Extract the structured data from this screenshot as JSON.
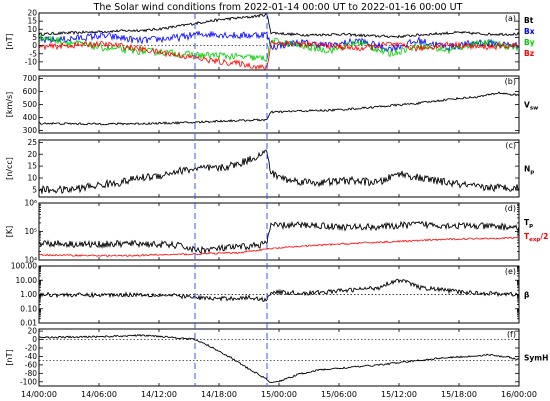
{
  "title": "The Solar wind conditions from 2022-01-14 00:00 UT to 2022-01-16 00:00 UT",
  "x_axis": {
    "range_hours": [
      0,
      48
    ],
    "ticks": [
      {
        "h": 0,
        "label": "14/00:00"
      },
      {
        "h": 6,
        "label": "14/06:00"
      },
      {
        "h": 12,
        "label": "14/12:00"
      },
      {
        "h": 18,
        "label": "14/18:00"
      },
      {
        "h": 24,
        "label": "15/00:00"
      },
      {
        "h": 30,
        "label": "15/06:00"
      },
      {
        "h": 36,
        "label": "15/12:00"
      },
      {
        "h": 42,
        "label": "15/18:00"
      },
      {
        "h": 48,
        "label": "16/00:00"
      }
    ]
  },
  "event_lines_hours": [
    15.6,
    22.8
  ],
  "colors": {
    "black": "#000000",
    "blue": "#0000ff",
    "green": "#00cc00",
    "red": "#ff0000",
    "event_dashes": "#3355ff"
  },
  "chart_data": [
    {
      "type": "line",
      "panel": "a",
      "ylabel": "[nT]",
      "ylim": [
        -15,
        20
      ],
      "yticks": [
        -10,
        -5,
        0,
        5,
        10,
        15,
        20
      ],
      "ytick_labels": [
        "-10",
        "-5",
        "0",
        "5",
        "10",
        "15",
        "20"
      ],
      "ref_lines": [
        0
      ],
      "series": [
        {
          "name": "Bt",
          "color": "#000000",
          "points": [
            [
              0,
              7
            ],
            [
              4,
              8
            ],
            [
              8,
              9
            ],
            [
              11,
              9.5
            ],
            [
              13,
              11
            ],
            [
              15,
              13
            ],
            [
              17,
              15
            ],
            [
              19,
              16.5
            ],
            [
              21,
              17.5
            ],
            [
              22.8,
              19
            ],
            [
              23.2,
              8
            ],
            [
              25,
              7
            ],
            [
              27,
              6.5
            ],
            [
              30,
              7
            ],
            [
              33,
              6
            ],
            [
              36,
              5.5
            ],
            [
              39,
              7
            ],
            [
              42,
              8
            ],
            [
              45,
              7
            ],
            [
              48,
              7
            ]
          ],
          "noise": 0.8
        },
        {
          "name": "Bx",
          "color": "#0000ff",
          "points": [
            [
              0,
              3
            ],
            [
              3,
              4
            ],
            [
              6,
              6
            ],
            [
              8,
              5
            ],
            [
              10,
              3
            ],
            [
              12,
              4
            ],
            [
              14,
              5
            ],
            [
              16,
              7
            ],
            [
              18,
              7
            ],
            [
              20,
              6
            ],
            [
              22.8,
              7
            ],
            [
              23.2,
              -1
            ],
            [
              26,
              2
            ],
            [
              29,
              0
            ],
            [
              32,
              3
            ],
            [
              35,
              -2
            ],
            [
              38,
              3
            ],
            [
              41,
              -1
            ],
            [
              44,
              2
            ],
            [
              48,
              0
            ]
          ],
          "noise": 2.2
        },
        {
          "name": "By",
          "color": "#00cc00",
          "points": [
            [
              0,
              5
            ],
            [
              3,
              2
            ],
            [
              6,
              -1
            ],
            [
              9,
              -3
            ],
            [
              12,
              -4
            ],
            [
              14,
              -5
            ],
            [
              16,
              -6
            ],
            [
              18,
              -6
            ],
            [
              20,
              -7
            ],
            [
              22.8,
              -8
            ],
            [
              23.2,
              3
            ],
            [
              26,
              0
            ],
            [
              29,
              -3
            ],
            [
              32,
              2
            ],
            [
              35,
              -5
            ],
            [
              38,
              0
            ],
            [
              41,
              -3
            ],
            [
              44,
              2
            ],
            [
              48,
              -1
            ]
          ],
          "noise": 2.2
        },
        {
          "name": "Bz",
          "color": "#ff0000",
          "points": [
            [
              0,
              -1
            ],
            [
              3,
              0
            ],
            [
              6,
              1
            ],
            [
              8,
              0
            ],
            [
              10,
              -2
            ],
            [
              12,
              -4
            ],
            [
              14,
              -6
            ],
            [
              16,
              -8
            ],
            [
              18,
              -10
            ],
            [
              20,
              -11
            ],
            [
              22.8,
              -14
            ],
            [
              23.2,
              2
            ],
            [
              26,
              1
            ],
            [
              29,
              0
            ],
            [
              32,
              -2
            ],
            [
              35,
              1
            ],
            [
              38,
              -2
            ],
            [
              41,
              1
            ],
            [
              44,
              -1
            ],
            [
              48,
              0
            ]
          ],
          "noise": 1.8
        }
      ]
    },
    {
      "type": "line",
      "panel": "b",
      "ylabel": "[km/s]",
      "ylim": [
        280,
        720
      ],
      "yticks": [
        300,
        400,
        500,
        600,
        700
      ],
      "ytick_labels": [
        "300",
        "400",
        "500",
        "600",
        "700"
      ],
      "ref_lines": [],
      "series": [
        {
          "name": "Vsw",
          "color": "#000000",
          "points": [
            [
              0,
              355
            ],
            [
              5,
              350
            ],
            [
              10,
              352
            ],
            [
              15,
              360
            ],
            [
              18,
              372
            ],
            [
              22.8,
              382
            ],
            [
              23.2,
              440
            ],
            [
              26,
              450
            ],
            [
              29,
              455
            ],
            [
              32,
              470
            ],
            [
              35,
              490
            ],
            [
              38,
              510
            ],
            [
              41,
              540
            ],
            [
              44,
              560
            ],
            [
              46,
              590
            ],
            [
              48,
              570
            ]
          ],
          "noise": 8
        }
      ]
    },
    {
      "type": "line",
      "panel": "c",
      "ylabel": "[n/cc]",
      "ylim": [
        2,
        26
      ],
      "yticks": [
        5,
        10,
        15,
        20,
        25
      ],
      "ytick_labels": [
        "5",
        "10",
        "15",
        "20",
        "25"
      ],
      "ref_lines": [],
      "series": [
        {
          "name": "Np",
          "color": "#000000",
          "points": [
            [
              0,
              5
            ],
            [
              3,
              5
            ],
            [
              6,
              7
            ],
            [
              8,
              8
            ],
            [
              10,
              10
            ],
            [
              12,
              11
            ],
            [
              14,
              13
            ],
            [
              16,
              14
            ],
            [
              18,
              14
            ],
            [
              20,
              16
            ],
            [
              22.8,
              21
            ],
            [
              23.2,
              12
            ],
            [
              25,
              9
            ],
            [
              28,
              8
            ],
            [
              31,
              9
            ],
            [
              34,
              8
            ],
            [
              36,
              12
            ],
            [
              38,
              10
            ],
            [
              41,
              8
            ],
            [
              44,
              6
            ],
            [
              48,
              6
            ]
          ],
          "noise": 1.6
        }
      ]
    },
    {
      "type": "line",
      "panel": "d",
      "ylabel": "[K]",
      "ylog": true,
      "ylim": [
        10000,
        1000000
      ],
      "yticks": [
        10000,
        100000,
        1000000
      ],
      "ytick_labels": [
        "10⁴",
        "10⁵",
        "10⁶"
      ],
      "ref_lines": [],
      "series": [
        {
          "name": "Tp",
          "color": "#000000",
          "points": [
            [
              0,
              40000
            ],
            [
              5,
              35000
            ],
            [
              10,
              38000
            ],
            [
              14,
              32000
            ],
            [
              15.6,
              22000
            ],
            [
              18,
              25000
            ],
            [
              21,
              30000
            ],
            [
              22.8,
              38000
            ],
            [
              23.2,
              160000
            ],
            [
              27,
              170000
            ],
            [
              31,
              140000
            ],
            [
              35,
              150000
            ],
            [
              38,
              180000
            ],
            [
              42,
              160000
            ],
            [
              45,
              150000
            ],
            [
              48,
              140000
            ]
          ],
          "noise": 0.12
        },
        {
          "name": "Texp/2",
          "color": "#ff0000",
          "points": [
            [
              0,
              15000
            ],
            [
              8,
              14000
            ],
            [
              15,
              16000
            ],
            [
              20,
              18000
            ],
            [
              22.8,
              24000
            ],
            [
              26,
              30000
            ],
            [
              30,
              36000
            ],
            [
              34,
              42000
            ],
            [
              38,
              48000
            ],
            [
              42,
              55000
            ],
            [
              48,
              60000
            ]
          ],
          "noise": 0.03
        }
      ]
    },
    {
      "type": "line",
      "panel": "e",
      "ylabel": "",
      "ylog": true,
      "ylim": [
        0.01,
        100
      ],
      "yticks": [
        0.01,
        0.1,
        1,
        10,
        100
      ],
      "ytick_labels": [
        "0.01",
        "0.10",
        "1.00",
        "10.00",
        "100.00"
      ],
      "ref_lines": [
        1
      ],
      "series": [
        {
          "name": "β",
          "color": "#000000",
          "points": [
            [
              0,
              1.0
            ],
            [
              5,
              0.9
            ],
            [
              10,
              1.0
            ],
            [
              14,
              0.8
            ],
            [
              15.6,
              0.6
            ],
            [
              18,
              0.5
            ],
            [
              21,
              0.6
            ],
            [
              22.8,
              0.4
            ],
            [
              23.2,
              1.5
            ],
            [
              27,
              1.2
            ],
            [
              31,
              2.0
            ],
            [
              34,
              3.0
            ],
            [
              36,
              10
            ],
            [
              38,
              3
            ],
            [
              42,
              1.5
            ],
            [
              45,
              1.2
            ],
            [
              48,
              1.0
            ]
          ],
          "noise": 0.15
        }
      ]
    },
    {
      "type": "line",
      "panel": "f",
      "ylabel": "[nT]",
      "ylim": [
        -110,
        25
      ],
      "yticks": [
        -100,
        -80,
        -60,
        -40,
        -20,
        0,
        20
      ],
      "ytick_labels": [
        "-100",
        "-80",
        "-60",
        "-40",
        "-20",
        "0",
        "20"
      ],
      "ref_lines": [
        0,
        -50
      ],
      "series": [
        {
          "name": "SymH",
          "color": "#000000",
          "points": [
            [
              0,
              5
            ],
            [
              4,
              6
            ],
            [
              8,
              8
            ],
            [
              10,
              10
            ],
            [
              12,
              8
            ],
            [
              14,
              4
            ],
            [
              15.6,
              0
            ],
            [
              17,
              -15
            ],
            [
              19,
              -40
            ],
            [
              21,
              -70
            ],
            [
              22.5,
              -90
            ],
            [
              23.3,
              -103
            ],
            [
              24.5,
              -95
            ],
            [
              26,
              -82
            ],
            [
              28,
              -72
            ],
            [
              31,
              -66
            ],
            [
              34,
              -60
            ],
            [
              37,
              -52
            ],
            [
              40,
              -44
            ],
            [
              43,
              -40
            ],
            [
              45,
              -36
            ],
            [
              47,
              -42
            ],
            [
              48,
              -48
            ]
          ],
          "noise": 2
        }
      ]
    }
  ],
  "legends": {
    "a": [
      {
        "text": "Bt",
        "color": "#000000"
      },
      {
        "text": "Bx",
        "color": "#0000ff"
      },
      {
        "text": "By",
        "color": "#00cc00"
      },
      {
        "text": "Bz",
        "color": "#ff0000"
      }
    ],
    "b": [
      {
        "text": "V",
        "sub": "sw",
        "color": "#000000"
      }
    ],
    "c": [
      {
        "text": "N",
        "sub": "p",
        "color": "#000000"
      }
    ],
    "d": [
      {
        "text": "T",
        "sub": "p",
        "color": "#000000"
      },
      {
        "text": "T",
        "sub": "exp",
        "tail": "/2",
        "color": "#ff0000"
      }
    ],
    "e": [
      {
        "text": "β",
        "color": "#000000"
      }
    ],
    "f": [
      {
        "text": "SymH",
        "color": "#000000"
      }
    ]
  },
  "panel_letters": [
    "(a)",
    "(b)",
    "(c)",
    "(d)",
    "(e)",
    "(f)"
  ]
}
